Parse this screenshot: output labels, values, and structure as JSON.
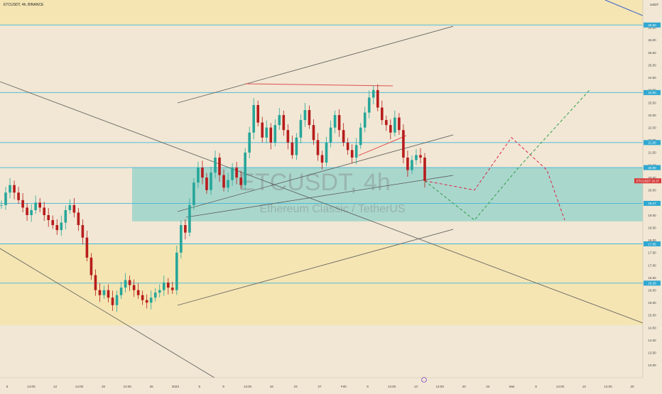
{
  "header": {
    "symbol_info": "ETCUSDT, 4h, BINANCE"
  },
  "watermark": {
    "ticker": "ETCUSDT, 4h",
    "description": "Ethereum Classic / TetherUS"
  },
  "price_axis": {
    "currency": "USDT",
    "ticks": [
      "26.50",
      "26.00",
      "25.50",
      "25.00",
      "24.50",
      "24.00",
      "23.50",
      "23.00",
      "22.50",
      "22.00",
      "21.50",
      "21.00",
      "20.50",
      "20.00",
      "19.50",
      "19.00",
      "18.50",
      "18.00",
      "17.50",
      "17.00",
      "16.50",
      "16.00",
      "15.50",
      "15.00",
      "14.50",
      "14.00",
      "13.50",
      "13.00"
    ],
    "ticks_values": [
      26.5,
      26,
      25.5,
      25,
      24.5,
      24,
      23.5,
      23,
      22.5,
      22,
      21.5,
      21,
      20.5,
      20,
      19.5,
      19,
      18.5,
      18,
      17.5,
      17,
      16.5,
      16,
      15.5,
      15,
      14.5,
      14,
      13.5,
      13
    ],
    "level_labels": [
      {
        "text": "26.60",
        "value": 26.6
      },
      {
        "text": "23.90",
        "value": 23.9
      },
      {
        "text": "21.90",
        "value": 21.9
      },
      {
        "text": "20.90",
        "value": 20.9
      },
      {
        "text": "19.47",
        "value": 19.47
      },
      {
        "text": "17.85",
        "value": 17.85
      },
      {
        "text": "16.28",
        "value": 16.28
      }
    ],
    "current_price": {
      "text": "ETCUSDT 20.37",
      "value": 20.37
    }
  },
  "time_axis": {
    "labels": [
      "5",
      "14:00",
      "12",
      "14:00",
      "19",
      "14:00",
      "26",
      "2023",
      "5",
      "9",
      "14:00",
      "16",
      "23",
      "27",
      "Feb",
      "6",
      "14:00",
      "13",
      "14:00",
      "20",
      "24",
      "Mar",
      "6",
      "14:00",
      "13",
      "14:00",
      "20"
    ]
  },
  "colors": {
    "background": "#f1e7d4",
    "up_candle": "#26a69a",
    "down_candle": "#b71c1c",
    "zone_fill": "#8fd1c9",
    "zone_fill_yellow": "#f4e4a8",
    "horizontal_level": "#40b6d9",
    "trend_line": "#5a5a5a",
    "red_resistance": "#e05050",
    "bearish_projection": "#d8254a",
    "bullish_projection": "#2e9e4a",
    "descending_blue_line": "#3a5fcd"
  },
  "chart_data": {
    "type": "candlestick",
    "title": "ETCUSDT, 4h, BINANCE",
    "ylim": [
      12.5,
      27.6
    ],
    "y_scale": "linear",
    "grid": false,
    "horizontal_levels": [
      26.6,
      23.9,
      21.9,
      20.9,
      19.47,
      17.85,
      16.28
    ],
    "zones": [
      {
        "kind": "demand",
        "from": 18.75,
        "to": 20.9
      },
      {
        "kind": "support",
        "from": 14.6,
        "to": 17.85
      },
      {
        "kind": "resistance",
        "from": 26.6,
        "to": 27.6
      }
    ],
    "price_path": [
      [
        19.4,
        19.5
      ],
      [
        19.9,
        20
      ],
      [
        20.2,
        20.3
      ],
      [
        19.9,
        20
      ],
      [
        19.6,
        19.7
      ],
      [
        19.3,
        19.4
      ],
      [
        19,
        19.1
      ],
      [
        19.2,
        19.3
      ],
      [
        19.5,
        19.6
      ],
      [
        19.3,
        19.4
      ],
      [
        19,
        19.1
      ],
      [
        18.8,
        18.9
      ],
      [
        18.6,
        18.7
      ],
      [
        18.4,
        18.5
      ],
      [
        18.7,
        18.8
      ],
      [
        19.2,
        19.3
      ],
      [
        19.4,
        19.5
      ],
      [
        19.1,
        19.2
      ],
      [
        18.6,
        18.7
      ],
      [
        18.1,
        18.2
      ],
      [
        17.3,
        17.4
      ],
      [
        16.6,
        16.7
      ],
      [
        16.0,
        16.1
      ],
      [
        15.8,
        15.9
      ],
      [
        16.0,
        16.1
      ],
      [
        15.7,
        15.8
      ],
      [
        15.4,
        15.5
      ],
      [
        15.8,
        15.9
      ],
      [
        16.1,
        16.2
      ],
      [
        16.4,
        16.5
      ],
      [
        16.2,
        16.3
      ],
      [
        16.0,
        16.1
      ],
      [
        15.8,
        15.9
      ],
      [
        15.6,
        15.7
      ],
      [
        15.5,
        15.6
      ],
      [
        15.7,
        15.8
      ],
      [
        15.9,
        16
      ],
      [
        16.0,
        16.1
      ],
      [
        16.3,
        16.4
      ],
      [
        16.1,
        16.2
      ],
      [
        16.0,
        16.1
      ],
      [
        17.5,
        17.6
      ],
      [
        18.6,
        18.7
      ],
      [
        18.3,
        18.4
      ],
      [
        19.4,
        19.5
      ],
      [
        20.3,
        20.4
      ],
      [
        20.9,
        21
      ],
      [
        20.5,
        20.6
      ],
      [
        20.0,
        20.1
      ],
      [
        20.7,
        20.8
      ],
      [
        21.3,
        21.4
      ],
      [
        20.6,
        20.7
      ],
      [
        20.1,
        20.2
      ],
      [
        20.4,
        20.5
      ],
      [
        20.9,
        21
      ],
      [
        20.5,
        20.6
      ],
      [
        20.2,
        20.3
      ],
      [
        21.5,
        21.6
      ],
      [
        22.3,
        22.4
      ],
      [
        23.4,
        23.5
      ],
      [
        22.7,
        22.8
      ],
      [
        22.1,
        22.2
      ],
      [
        22.5,
        22.6
      ],
      [
        21.9,
        22
      ],
      [
        22.6,
        22.7
      ],
      [
        23.0,
        23.1
      ],
      [
        22.4,
        22.5
      ],
      [
        21.9,
        22
      ],
      [
        21.4,
        21.5
      ],
      [
        22.1,
        22.2
      ],
      [
        22.8,
        22.9
      ],
      [
        23.2,
        23.3
      ],
      [
        22.6,
        22.7
      ],
      [
        22.0,
        22.1
      ],
      [
        21.4,
        21.5
      ],
      [
        21.1,
        21.2
      ],
      [
        21.9,
        22
      ],
      [
        22.5,
        22.6
      ],
      [
        23.0,
        23.1
      ],
      [
        22.4,
        22.5
      ],
      [
        21.9,
        22
      ],
      [
        21.6,
        21.7
      ],
      [
        21.3,
        21.4
      ],
      [
        21.8,
        21.9
      ],
      [
        22.5,
        22.6
      ],
      [
        23.1,
        23.2
      ],
      [
        23.7,
        23.8
      ],
      [
        24.0,
        24.1
      ],
      [
        23.3,
        23.4
      ],
      [
        22.8,
        22.9
      ],
      [
        22.6,
        22.7
      ],
      [
        22.3,
        22.4
      ],
      [
        22.9,
        23
      ],
      [
        22.4,
        22.5
      ],
      [
        21.3,
        21.4
      ],
      [
        20.8,
        20.9
      ],
      [
        21.2,
        21.3
      ],
      [
        21.4,
        21.5
      ],
      [
        21.3,
        21.4
      ],
      [
        20.37,
        20.4
      ]
    ],
    "series": [
      {
        "name": "",
        "kind": "bearish_projection",
        "points": [
          [
            20.4,
            20.37
          ],
          [
            19.9,
            20
          ],
          [
            21.9,
            22.1
          ],
          [
            20.9,
            20.8
          ],
          [
            18.9,
            18.8
          ]
        ]
      },
      {
        "name": "",
        "kind": "bullish_projection",
        "points": [
          [
            20.4,
            20.37
          ],
          [
            18.9,
            18.8
          ],
          [
            20.9,
            20.9
          ],
          [
            23.9,
            24.0
          ]
        ]
      }
    ]
  }
}
